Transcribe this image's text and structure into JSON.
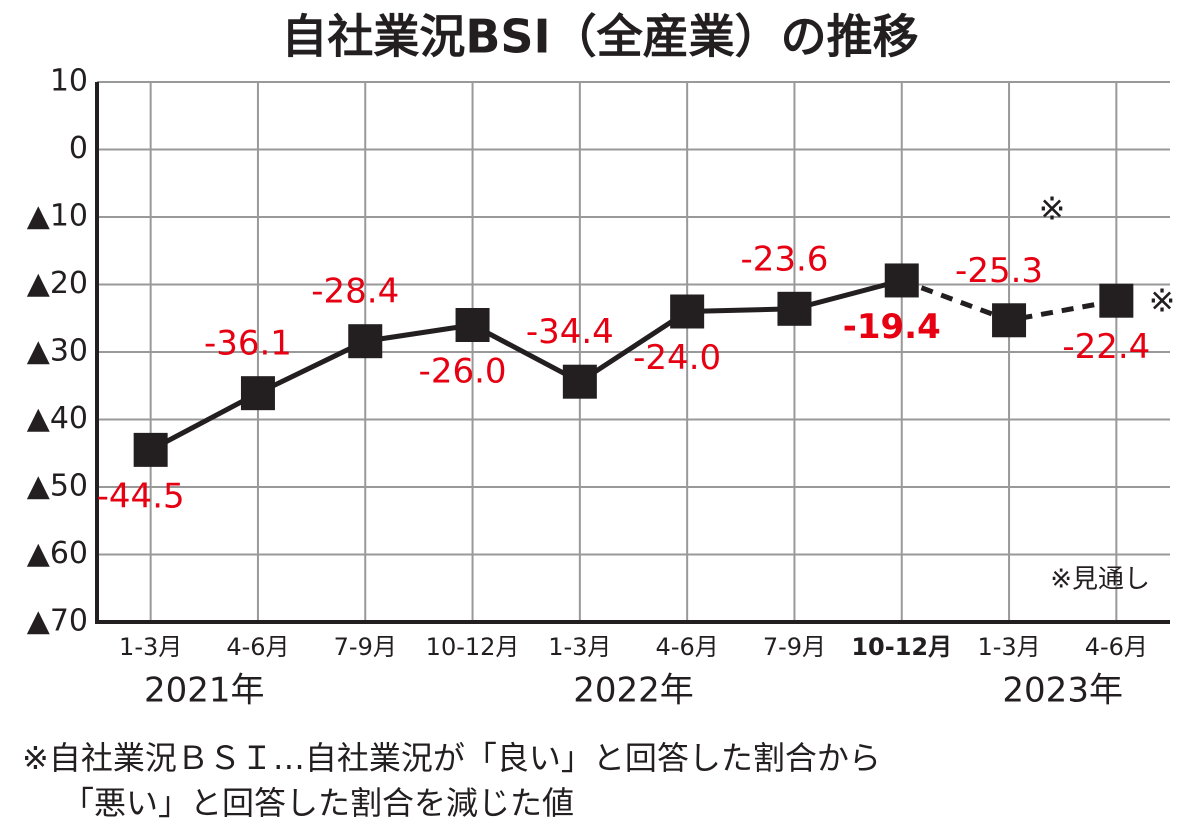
{
  "chart_data": {
    "type": "line",
    "title": "自社業況BSI（全産業）の推移",
    "categories": [
      "1-3月",
      "4-6月",
      "7-9月",
      "10-12月",
      "1-3月",
      "4-6月",
      "7-9月",
      "10-12月",
      "1-3月",
      "4-6月"
    ],
    "years": [
      "2021年",
      "2022年",
      "2023年"
    ],
    "values": [
      -44.5,
      -36.1,
      -28.4,
      -26.0,
      -34.4,
      -24.0,
      -23.6,
      -19.4,
      -25.3,
      -22.4
    ],
    "value_labels": [
      "-44.5",
      "-36.1",
      "-28.4",
      "-26.0",
      "-34.4",
      "-24.0",
      "-23.6",
      "-19.4",
      "-25.3",
      "-22.4"
    ],
    "label_position": [
      "below",
      "above",
      "above",
      "below",
      "above",
      "below",
      "above",
      "below",
      "above",
      "below"
    ],
    "highlight_index": 7,
    "forecast_start": 8,
    "forecast_mark": "※",
    "forecast_note": "※見通し",
    "color": "#231f20",
    "label_color": "#e60012",
    "ylim": [
      -70,
      10
    ],
    "yticks": [
      10,
      0,
      {
        "value": -10,
        "label": "▲10"
      },
      {
        "value": -20,
        "label": "▲20"
      },
      {
        "value": -30,
        "label": "▲30"
      },
      {
        "value": -40,
        "label": "▲40"
      },
      {
        "value": -50,
        "label": "▲50"
      },
      {
        "value": -60,
        "label": "▲60"
      },
      {
        "value": -70,
        "label": "▲70"
      }
    ],
    "grid": true,
    "footnote": [
      "※自社業況ＢＳＩ…自社業況が「良い」と回答した割合から",
      "「悪い」と回答した割合を減じた値"
    ]
  }
}
